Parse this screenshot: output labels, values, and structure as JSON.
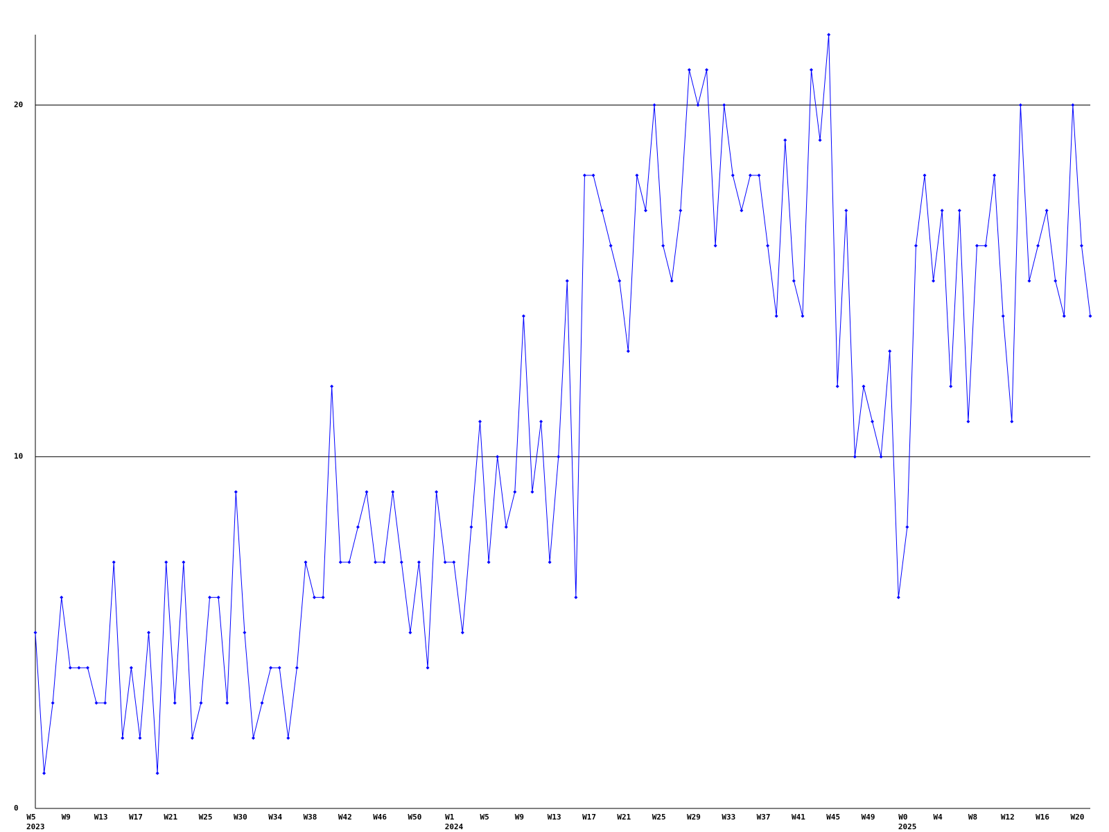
{
  "chart_data": {
    "type": "line",
    "categories": [
      "W5",
      null,
      null,
      null,
      "W9",
      null,
      null,
      null,
      "W13",
      null,
      null,
      null,
      "W17",
      null,
      null,
      null,
      "W21",
      null,
      null,
      null,
      "W25",
      null,
      null,
      null,
      "W30",
      null,
      null,
      null,
      "W34",
      null,
      null,
      null,
      "W38",
      null,
      null,
      null,
      "W42",
      null,
      null,
      null,
      "W46",
      null,
      null,
      null,
      "W50",
      null,
      null,
      null,
      "W1",
      null,
      null,
      null,
      "W5",
      null,
      null,
      null,
      "W9",
      null,
      null,
      null,
      "W13",
      null,
      null,
      null,
      "W17",
      null,
      null,
      null,
      "W21",
      null,
      null,
      null,
      "W25",
      null,
      null,
      null,
      "W29",
      null,
      null,
      null,
      "W33",
      null,
      null,
      null,
      "W37",
      null,
      null,
      null,
      "W41",
      null,
      null,
      null,
      "W45",
      null,
      null,
      null,
      "W49",
      null,
      null,
      null,
      "W0",
      null,
      null,
      null,
      "W4",
      null,
      null,
      null,
      "W8",
      null,
      null,
      null,
      "W12",
      null,
      null,
      null,
      "W16",
      null,
      null,
      null,
      "W20",
      null
    ],
    "years": [
      "2023",
      null,
      null,
      null,
      null,
      null,
      null,
      null,
      null,
      null,
      null,
      null,
      null,
      null,
      null,
      null,
      null,
      null,
      null,
      null,
      null,
      null,
      null,
      null,
      null,
      null,
      null,
      null,
      null,
      null,
      null,
      null,
      null,
      null,
      null,
      null,
      null,
      null,
      null,
      null,
      null,
      null,
      null,
      null,
      null,
      null,
      null,
      null,
      "2024",
      null,
      null,
      null,
      null,
      null,
      null,
      null,
      null,
      null,
      null,
      null,
      null,
      null,
      null,
      null,
      null,
      null,
      null,
      null,
      null,
      null,
      null,
      null,
      null,
      null,
      null,
      null,
      null,
      null,
      null,
      null,
      null,
      null,
      null,
      null,
      null,
      null,
      null,
      null,
      null,
      null,
      null,
      null,
      null,
      null,
      null,
      null,
      null,
      null,
      null,
      null,
      "2025",
      null,
      null,
      null,
      null,
      null,
      null,
      null,
      null,
      null,
      null,
      null,
      null,
      null,
      null,
      null,
      null,
      null,
      null,
      null,
      null,
      null
    ],
    "series": [
      {
        "color": "#0000ff",
        "values": [
          5,
          1,
          3,
          6,
          4,
          4,
          4,
          3,
          3,
          7,
          2,
          4,
          2,
          5,
          1,
          7,
          3,
          7,
          2,
          3,
          6,
          6,
          3,
          9,
          5,
          2,
          3,
          4,
          4,
          2,
          4,
          7,
          6,
          6,
          12,
          7,
          7,
          8,
          9,
          7,
          7,
          9,
          7,
          5,
          7,
          4,
          9,
          7,
          7,
          5,
          8,
          11,
          7,
          10,
          8,
          9,
          14,
          9,
          11,
          7,
          10,
          15,
          6,
          18,
          18,
          17,
          16,
          15,
          13,
          18,
          17,
          20,
          16,
          15,
          17,
          21,
          20,
          21,
          16,
          20,
          18,
          17,
          18,
          18,
          16,
          14,
          19,
          15,
          14,
          21,
          19,
          22,
          12,
          17,
          10,
          12,
          11,
          10,
          13,
          6,
          8,
          16,
          18,
          15,
          17,
          12,
          17,
          11,
          16,
          16,
          18,
          14,
          11,
          20,
          15,
          16,
          17,
          15,
          14,
          20,
          16,
          14
        ]
      }
    ],
    "ylim": [
      0,
      22
    ],
    "yticks": [
      0,
      10,
      20
    ],
    "grid": true
  }
}
